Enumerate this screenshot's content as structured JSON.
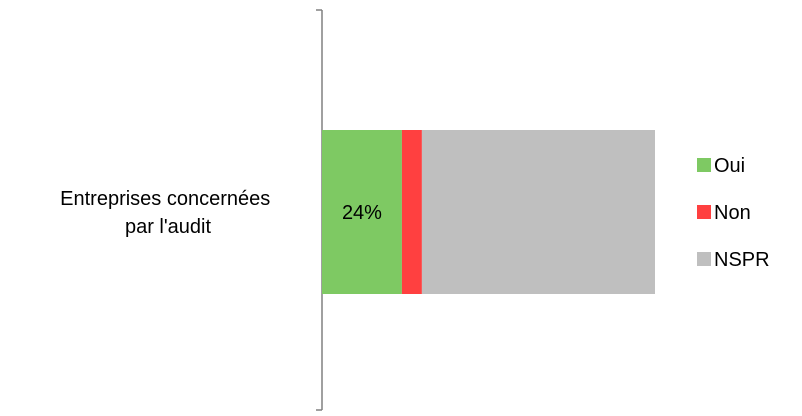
{
  "chart_data": {
    "type": "bar",
    "orientation": "horizontal",
    "stacked": true,
    "categories": [
      "Entreprises concernées par l'audit"
    ],
    "category_label_lines": [
      "Entreprises concernées",
      "par l'audit"
    ],
    "series": [
      {
        "name": "Oui",
        "values": [
          24
        ],
        "color": "#7ec963",
        "data_label": "24%"
      },
      {
        "name": "Non",
        "values": [
          6
        ],
        "color": "#ff4040",
        "data_label": ""
      },
      {
        "name": "NSPR",
        "values": [
          70
        ],
        "color": "#bfbfbf",
        "data_label": ""
      }
    ],
    "xlim": [
      0,
      100
    ],
    "title": "",
    "xlabel": "",
    "ylabel": "",
    "grid": false,
    "legend": "right"
  }
}
